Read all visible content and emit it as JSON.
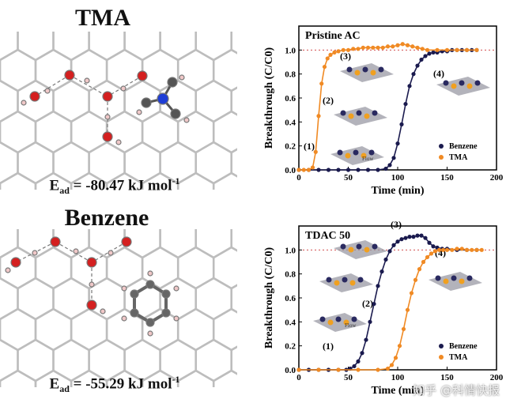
{
  "left": {
    "tma": {
      "title": "TMA",
      "energy_label": "E",
      "energy_sub": "ad",
      "energy_value": " = -80.47 kJ mol",
      "energy_sup": "-1"
    },
    "benzene": {
      "title": "Benzene",
      "energy_label": "E",
      "energy_sub": "ad",
      "energy_value": " = -55.29 kJ mol",
      "energy_sup": "-1"
    }
  },
  "chart_data": [
    {
      "type": "scatter",
      "title": "Pristine AC",
      "xlabel": "Time (min)",
      "ylabel": "Breakthrough (C/C0)",
      "xlim": [
        0,
        200
      ],
      "ylim": [
        0,
        1.2
      ],
      "xticks": [
        0,
        50,
        100,
        150,
        200
      ],
      "yticks": [
        0.0,
        0.2,
        0.4,
        0.6,
        0.8,
        1.0
      ],
      "stage_labels": [
        "(1)",
        "(2)",
        "(3)",
        "(4)"
      ],
      "flow_label": "Flow",
      "legend_position": "bottom-right",
      "series": [
        {
          "name": "Benzene",
          "color": "#1a1a4e",
          "x": [
            0,
            10,
            20,
            30,
            40,
            50,
            60,
            70,
            80,
            88,
            92,
            96,
            100,
            104,
            108,
            112,
            116,
            120,
            124,
            128,
            132,
            136,
            140,
            145,
            150,
            155,
            160,
            165,
            170,
            175,
            180
          ],
          "y": [
            0,
            0,
            0,
            0,
            0,
            0,
            0,
            0,
            0,
            0.01,
            0.04,
            0.1,
            0.22,
            0.38,
            0.55,
            0.7,
            0.8,
            0.87,
            0.92,
            0.95,
            0.97,
            0.98,
            0.98,
            0.99,
            0.99,
            1.0,
            1.0,
            1.0,
            1.0,
            1.0,
            1.0
          ]
        },
        {
          "name": "TMA",
          "color": "#f08a24",
          "x": [
            0,
            5,
            10,
            14,
            17,
            20,
            23,
            26,
            29,
            32,
            36,
            40,
            45,
            50,
            55,
            60,
            65,
            70,
            75,
            80,
            85,
            90,
            95,
            100,
            105,
            110,
            115,
            120,
            125,
            130,
            140,
            150,
            160,
            170,
            180
          ],
          "y": [
            0,
            0,
            0,
            0.02,
            0.15,
            0.45,
            0.72,
            0.86,
            0.93,
            0.96,
            0.98,
            0.99,
            1.0,
            1.0,
            1.01,
            1.01,
            1.02,
            1.02,
            1.02,
            1.02,
            1.02,
            1.03,
            1.03,
            1.04,
            1.05,
            1.04,
            1.03,
            1.02,
            1.01,
            1.0,
            1.0,
            1.0,
            1.0,
            1.0,
            1.0
          ]
        }
      ]
    },
    {
      "type": "scatter",
      "title": "TDAC 50",
      "xlabel": "Time (min)",
      "ylabel": "Breakthrough (C/C0)",
      "xlim": [
        0,
        200
      ],
      "ylim": [
        0,
        1.2
      ],
      "xticks": [
        0,
        50,
        100,
        150,
        200
      ],
      "yticks": [
        0.0,
        0.2,
        0.4,
        0.6,
        0.8,
        1.0
      ],
      "stage_labels": [
        "(1)",
        "(2)",
        "(3)",
        "(4)"
      ],
      "flow_label": "Flow",
      "legend_position": "bottom-right",
      "series": [
        {
          "name": "Benzene",
          "color": "#1a1a4e",
          "x": [
            0,
            10,
            20,
            30,
            40,
            48,
            52,
            56,
            60,
            64,
            68,
            72,
            76,
            80,
            84,
            88,
            92,
            96,
            100,
            104,
            108,
            112,
            116,
            120,
            124,
            128,
            132,
            136,
            140,
            145,
            150,
            160,
            170,
            180
          ],
          "y": [
            0,
            0,
            0,
            0,
            0,
            0,
            0.01,
            0.03,
            0.07,
            0.14,
            0.25,
            0.4,
            0.55,
            0.7,
            0.82,
            0.92,
            0.99,
            1.04,
            1.07,
            1.09,
            1.1,
            1.11,
            1.11,
            1.12,
            1.12,
            1.1,
            1.06,
            1.03,
            1.02,
            1.01,
            1.01,
            1.0,
            1.0,
            1.0
          ]
        },
        {
          "name": "TMA",
          "color": "#f08a24",
          "x": [
            0,
            20,
            40,
            60,
            80,
            90,
            94,
            98,
            102,
            106,
            110,
            114,
            118,
            122,
            126,
            130,
            134,
            138,
            142,
            146,
            150,
            155,
            160,
            165,
            170,
            175,
            180,
            185
          ],
          "y": [
            0,
            0,
            0,
            0,
            0,
            0.01,
            0.04,
            0.1,
            0.2,
            0.34,
            0.5,
            0.64,
            0.75,
            0.84,
            0.9,
            0.94,
            0.97,
            0.99,
            1.0,
            1.0,
            1.0,
            1.0,
            1.01,
            1.01,
            1.0,
            1.0,
            1.0,
            1.0
          ]
        }
      ]
    }
  ]
}
